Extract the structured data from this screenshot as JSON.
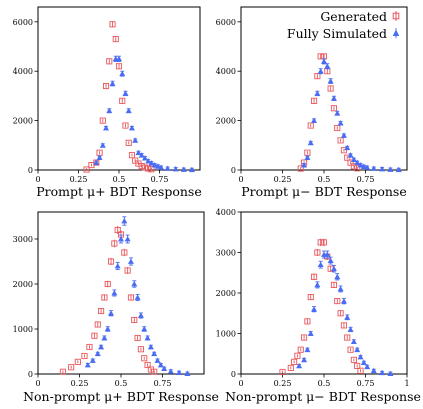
{
  "chart_data": [
    {
      "type": "scatter",
      "xlabel": "Prompt μ+ BDT Response",
      "xlim": [
        0,
        1
      ],
      "ylim": [
        0,
        6600
      ],
      "xticks": [
        "0",
        "0.25",
        "0.5",
        "0.75"
      ],
      "yticks": [
        "0",
        "2000",
        "4000",
        "6000"
      ],
      "series": [
        {
          "name": "Generated",
          "marker": "open-square",
          "color": "#e8555a",
          "x": [
            0.3,
            0.33,
            0.36,
            0.38,
            0.4,
            0.42,
            0.44,
            0.46,
            0.48,
            0.5,
            0.52,
            0.54,
            0.56,
            0.58,
            0.6,
            0.62,
            0.64,
            0.66,
            0.68,
            0.7
          ],
          "y": [
            20,
            200,
            300,
            700,
            2000,
            3400,
            4400,
            5900,
            5300,
            4200,
            2800,
            1800,
            1100,
            600,
            380,
            260,
            160,
            100,
            60,
            30
          ]
        },
        {
          "name": "Fully Simulated",
          "marker": "filled-triangle",
          "color": "#4a6cf2",
          "x": [
            0.36,
            0.38,
            0.4,
            0.42,
            0.44,
            0.46,
            0.48,
            0.5,
            0.52,
            0.54,
            0.56,
            0.58,
            0.6,
            0.62,
            0.64,
            0.66,
            0.68,
            0.7,
            0.72,
            0.74,
            0.76,
            0.8,
            0.85,
            0.9,
            0.95
          ],
          "y": [
            300,
            500,
            1000,
            1700,
            2400,
            3500,
            4500,
            4500,
            3900,
            3100,
            2400,
            1700,
            1200,
            700,
            600,
            480,
            360,
            280,
            200,
            150,
            100,
            60,
            40,
            20,
            10
          ]
        }
      ]
    },
    {
      "type": "scatter",
      "xlabel": "Prompt μ− BDT Response",
      "xlim": [
        0,
        1
      ],
      "ylim": [
        0,
        6600
      ],
      "xticks": [
        "0",
        "0.25",
        "0.5",
        "0.75"
      ],
      "yticks": [
        "0",
        "2000",
        "4000",
        "6000"
      ],
      "legend": {
        "position": "top-right",
        "entries": [
          "Generated",
          "Fully Simulated"
        ]
      },
      "series": [
        {
          "name": "Generated",
          "marker": "open-square",
          "color": "#e8555a",
          "x": [
            0.36,
            0.38,
            0.4,
            0.42,
            0.44,
            0.46,
            0.48,
            0.5,
            0.52,
            0.54,
            0.56,
            0.58,
            0.6,
            0.62,
            0.64,
            0.66,
            0.68,
            0.7
          ],
          "y": [
            60,
            300,
            700,
            1800,
            2800,
            3800,
            4600,
            4600,
            4000,
            3300,
            2500,
            1700,
            1200,
            800,
            500,
            300,
            150,
            70
          ]
        },
        {
          "name": "Fully Simulated",
          "marker": "filled-triangle",
          "color": "#4a6cf2",
          "x": [
            0.38,
            0.4,
            0.42,
            0.44,
            0.46,
            0.48,
            0.5,
            0.52,
            0.54,
            0.56,
            0.58,
            0.6,
            0.62,
            0.64,
            0.66,
            0.68,
            0.7,
            0.72,
            0.74,
            0.76,
            0.8,
            0.85,
            0.9,
            0.95
          ],
          "y": [
            200,
            500,
            1100,
            2000,
            3100,
            4000,
            4400,
            4200,
            3600,
            2900,
            2300,
            1900,
            1400,
            900,
            600,
            420,
            300,
            200,
            140,
            100,
            60,
            40,
            20,
            10
          ]
        }
      ]
    },
    {
      "type": "scatter",
      "xlabel": "Non-prompt μ+ BDT Response",
      "xlim": [
        0,
        1
      ],
      "ylim": [
        0,
        3600
      ],
      "xticks": [
        "0",
        "0.25",
        "0.5",
        "0.75"
      ],
      "yticks": [
        "0",
        "1000",
        "2000",
        "3000"
      ],
      "series": [
        {
          "name": "Generated",
          "marker": "open-square",
          "color": "#e8555a",
          "x": [
            0.15,
            0.2,
            0.24,
            0.28,
            0.31,
            0.34,
            0.36,
            0.38,
            0.4,
            0.42,
            0.44,
            0.46,
            0.48,
            0.5,
            0.52,
            0.54,
            0.56,
            0.58,
            0.6,
            0.62,
            0.64,
            0.66,
            0.68,
            0.7
          ],
          "y": [
            50,
            150,
            270,
            400,
            600,
            850,
            1100,
            1400,
            1700,
            2000,
            2500,
            2900,
            3200,
            3100,
            2700,
            2300,
            1700,
            1200,
            800,
            550,
            350,
            200,
            100,
            50
          ]
        },
        {
          "name": "Fully Simulated",
          "marker": "filled-triangle",
          "color": "#4a6cf2",
          "x": [
            0.3,
            0.33,
            0.36,
            0.38,
            0.4,
            0.42,
            0.44,
            0.46,
            0.48,
            0.5,
            0.52,
            0.54,
            0.56,
            0.58,
            0.6,
            0.62,
            0.64,
            0.66,
            0.68,
            0.7,
            0.72,
            0.74,
            0.76,
            0.8,
            0.85,
            0.9
          ],
          "y": [
            200,
            300,
            450,
            600,
            800,
            1000,
            1350,
            1800,
            2400,
            3000,
            3400,
            3000,
            2500,
            2000,
            1700,
            1300,
            1000,
            800,
            600,
            450,
            300,
            200,
            120,
            60,
            30,
            10
          ]
        }
      ]
    },
    {
      "type": "scatter",
      "xlabel": "Non-prompt μ− BDT Response",
      "xlim": [
        0,
        1
      ],
      "ylim": [
        0,
        4000
      ],
      "xticks": [
        "0",
        "0.25",
        "0.5",
        "0.75",
        "1"
      ],
      "yticks": [
        "0",
        "1000",
        "2000",
        "3000",
        "4000"
      ],
      "series": [
        {
          "name": "Generated",
          "marker": "open-square",
          "color": "#e8555a",
          "x": [
            0.25,
            0.3,
            0.32,
            0.34,
            0.36,
            0.38,
            0.4,
            0.42,
            0.44,
            0.46,
            0.48,
            0.5,
            0.52,
            0.54,
            0.56,
            0.58,
            0.6,
            0.62,
            0.64,
            0.66,
            0.68,
            0.7,
            0.72
          ],
          "y": [
            50,
            150,
            300,
            450,
            600,
            900,
            1300,
            1900,
            2400,
            3000,
            3250,
            3250,
            2900,
            2600,
            2200,
            1800,
            1500,
            1200,
            900,
            600,
            350,
            200,
            80
          ]
        },
        {
          "name": "Fully Simulated",
          "marker": "filled-triangle",
          "color": "#4a6cf2",
          "x": [
            0.35,
            0.38,
            0.4,
            0.42,
            0.44,
            0.46,
            0.48,
            0.5,
            0.52,
            0.54,
            0.56,
            0.58,
            0.6,
            0.62,
            0.64,
            0.66,
            0.68,
            0.7,
            0.72,
            0.74,
            0.76,
            0.8,
            0.85,
            0.9
          ],
          "y": [
            200,
            350,
            600,
            1000,
            1600,
            2200,
            2700,
            2950,
            2950,
            2800,
            2600,
            2400,
            2100,
            1800,
            1400,
            1100,
            800,
            600,
            420,
            280,
            180,
            80,
            30,
            10
          ]
        }
      ]
    }
  ]
}
